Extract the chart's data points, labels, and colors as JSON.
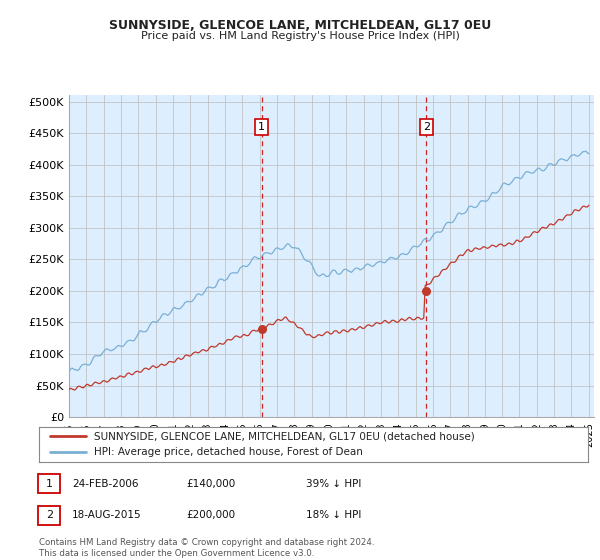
{
  "title1": "SUNNYSIDE, GLENCOE LANE, MITCHELDEAN, GL17 0EU",
  "title2": "Price paid vs. HM Land Registry's House Price Index (HPI)",
  "ylabel_ticks": [
    "£0",
    "£50K",
    "£100K",
    "£150K",
    "£200K",
    "£250K",
    "£300K",
    "£350K",
    "£400K",
    "£450K",
    "£500K"
  ],
  "ytick_values": [
    0,
    50000,
    100000,
    150000,
    200000,
    250000,
    300000,
    350000,
    400000,
    450000,
    500000
  ],
  "marker1_date": 2006.12,
  "marker1_price": 140000,
  "marker2_date": 2015.63,
  "marker2_price": 200000,
  "legend_line1": "SUNNYSIDE, GLENCOE LANE, MITCHELDEAN, GL17 0EU (detached house)",
  "legend_line2": "HPI: Average price, detached house, Forest of Dean",
  "footer": "Contains HM Land Registry data © Crown copyright and database right 2024.\nThis data is licensed under the Open Government Licence v3.0.",
  "hpi_color": "#7ab0d4",
  "price_color": "#c0392b",
  "bg_color": "#ddeeff",
  "grid_color": "#bbbbbb",
  "marker_box_color": "#cc0000",
  "table_row1_date": "24-FEB-2006",
  "table_row1_price": "£140,000",
  "table_row1_pct": "39% ↓ HPI",
  "table_row2_date": "18-AUG-2015",
  "table_row2_price": "£200,000",
  "table_row2_pct": "18% ↓ HPI"
}
